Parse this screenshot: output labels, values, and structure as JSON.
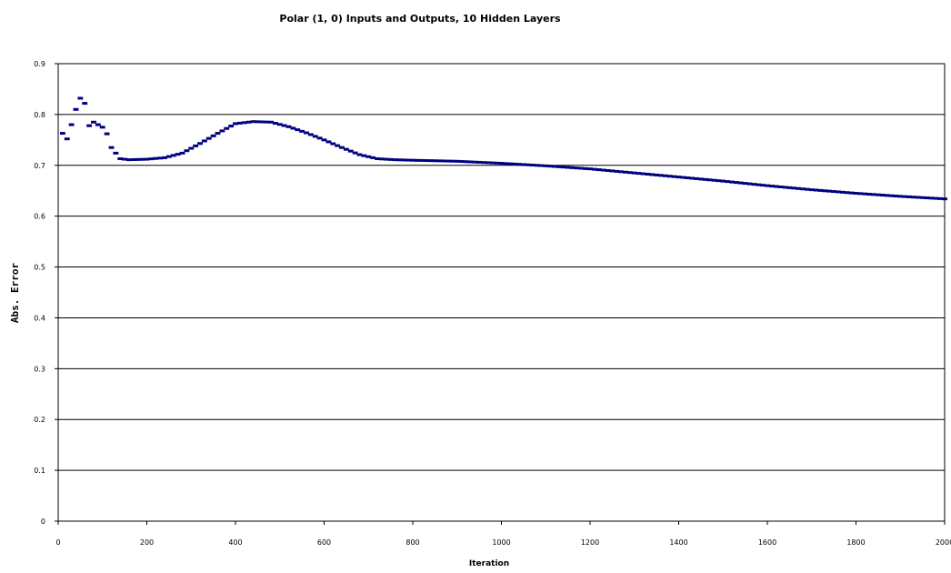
{
  "chart_data": {
    "type": "scatter",
    "title": "Polar (1, 0) Inputs and Outputs, 10 Hidden Layers",
    "xlabel": "Iteration",
    "ylabel": "Abs. Error",
    "xlim": [
      0,
      2000
    ],
    "ylim": [
      0,
      0.9
    ],
    "xticks": [
      0,
      200,
      400,
      600,
      800,
      1000,
      1200,
      1400,
      1600,
      1800,
      2000
    ],
    "yticks": [
      0,
      0.1,
      0.2,
      0.3,
      0.4,
      0.5,
      0.6,
      0.7,
      0.8,
      0.9
    ],
    "grid": "horizontal",
    "legend": "none",
    "marker": "dash",
    "series_color": "#000080",
    "early_points": {
      "x": [
        10,
        20,
        30,
        40,
        50,
        60,
        70,
        80,
        90,
        100,
        110,
        120,
        130
      ],
      "y": [
        0.763,
        0.752,
        0.78,
        0.81,
        0.832,
        0.822,
        0.778,
        0.785,
        0.78,
        0.775,
        0.762,
        0.735,
        0.724
      ]
    },
    "curve_control_points": {
      "x": [
        140,
        160,
        200,
        240,
        280,
        320,
        360,
        400,
        440,
        480,
        520,
        560,
        600,
        640,
        680,
        720,
        760,
        800,
        900,
        1000,
        1100,
        1200,
        1300,
        1400,
        1500,
        1600,
        1700,
        1800,
        1900,
        2000
      ],
      "y": [
        0.713,
        0.711,
        0.712,
        0.715,
        0.724,
        0.743,
        0.763,
        0.782,
        0.786,
        0.785,
        0.776,
        0.764,
        0.75,
        0.735,
        0.721,
        0.713,
        0.711,
        0.71,
        0.708,
        0.704,
        0.699,
        0.693,
        0.685,
        0.677,
        0.669,
        0.66,
        0.652,
        0.645,
        0.639,
        0.634
      ]
    },
    "curve_step": 10
  }
}
